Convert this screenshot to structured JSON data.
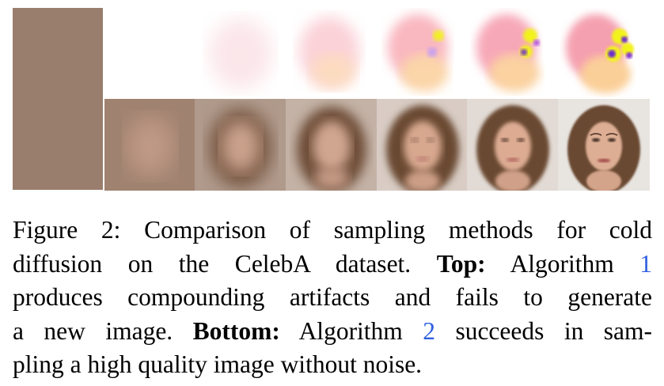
{
  "caption": {
    "label": "Figure 2:",
    "text_line1": "Comparison of sampling methods for cold",
    "text_line2a": "diffusion on the CelebA dataset.",
    "top_label": "Top:",
    "text_line2b": "Algorithm",
    "ref1": "1",
    "text_line3": "produces compounding artifacts and fails to generate",
    "text_line4a": "a new image.",
    "bottom_label": "Bottom:",
    "text_line4b": "Algorithm",
    "ref2": "2",
    "text_line4c": "succeeds in sam-",
    "text_line5": "pling a high quality image without noise."
  },
  "colors": {
    "reference_link": "#2f5fe0",
    "initial_tile": "#9a7e6d",
    "hair": "#6b4a32",
    "skin": "#d7a78e",
    "top_pink": "#f9b7c0",
    "top_orange": "#fbd6a8",
    "artifact_yellow": "#f2f21a",
    "artifact_purple": "#6a2ad0"
  },
  "rows": {
    "top": {
      "steps": 6,
      "description_icon": "artifact-sample-image"
    },
    "bottom": {
      "steps": 6,
      "description_icon": "face-sample-image"
    }
  }
}
